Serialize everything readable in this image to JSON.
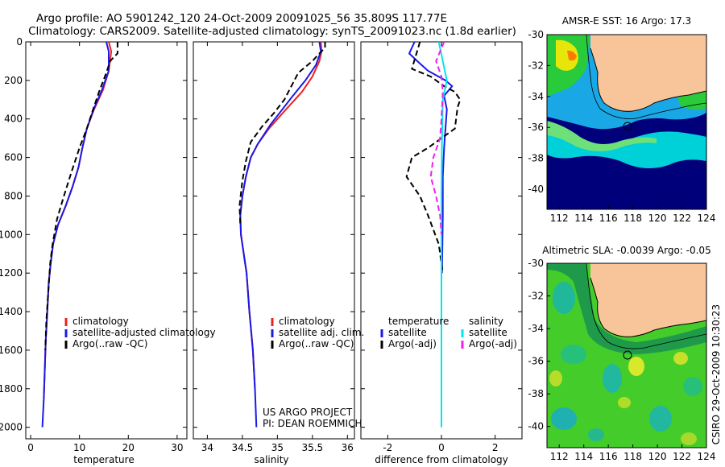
{
  "header": {
    "line1": "Argo profile: AO 5901242_120 24-Oct-2009 20091025_56 35.809S 117.77E",
    "line2": "Climatology: CARS2009. Satellite-adjusted climatology: synTS_20091023.nc (1.8d earlier)"
  },
  "depth_ticks": [
    0,
    200,
    400,
    600,
    800,
    1000,
    1200,
    1400,
    1600,
    1800,
    2000
  ],
  "colors": {
    "climatology": "#ee2020",
    "satellite": "#1a1ae6",
    "argo": "#000000",
    "cyan": "#00e5ee",
    "magenta": "#ee22ee",
    "land": "#f8c49a",
    "deep_blue": "#00007a"
  },
  "chart_data": [
    {
      "type": "line",
      "name": "temperature-panel",
      "xlabel": "temperature",
      "xlim": [
        -1,
        32
      ],
      "ylim": [
        0,
        2060
      ],
      "x_ticks": [
        0,
        10,
        20,
        30
      ],
      "series": [
        {
          "name": "climatology",
          "color": "#ee2020",
          "dashed": false,
          "points": [
            [
              16,
              0
            ],
            [
              16.5,
              50
            ],
            [
              16,
              150
            ],
            [
              14.8,
              250
            ],
            [
              13,
              350
            ],
            [
              11.5,
              450
            ],
            [
              10.6,
              550
            ],
            [
              9.8,
              650
            ],
            [
              8.6,
              750
            ],
            [
              7.2,
              850
            ],
            [
              5.6,
              950
            ],
            [
              4.6,
              1050
            ],
            [
              4.1,
              1150
            ],
            [
              3.7,
              1250
            ],
            [
              3.4,
              1400
            ],
            [
              3.1,
              1550
            ],
            [
              2.9,
              1700
            ],
            [
              2.7,
              1850
            ]
          ]
        },
        {
          "name": "satellite-adjusted climatology",
          "color": "#1a1ae6",
          "dashed": false,
          "points": [
            [
              15.5,
              0
            ],
            [
              16,
              50
            ],
            [
              16,
              150
            ],
            [
              14.6,
              250
            ],
            [
              12.9,
              350
            ],
            [
              11.5,
              450
            ],
            [
              10.6,
              550
            ],
            [
              9.8,
              650
            ],
            [
              8.6,
              750
            ],
            [
              7.2,
              850
            ],
            [
              5.6,
              950
            ],
            [
              4.6,
              1050
            ],
            [
              4.1,
              1150
            ],
            [
              3.7,
              1250
            ],
            [
              3.4,
              1400
            ],
            [
              3.1,
              1550
            ],
            [
              2.9,
              1700
            ],
            [
              2.7,
              1850
            ],
            [
              2.4,
              2000
            ]
          ]
        },
        {
          "name": "Argo(..raw -QC)",
          "color": "#000000",
          "dashed": true,
          "points": [
            [
              17.8,
              0
            ],
            [
              17.8,
              60
            ],
            [
              17,
              80
            ],
            [
              16.3,
              100
            ],
            [
              15.5,
              160
            ],
            [
              14,
              260
            ],
            [
              12.8,
              350
            ],
            [
              11.5,
              450
            ],
            [
              10,
              550
            ],
            [
              8.3,
              680
            ],
            [
              6.8,
              800
            ],
            [
              5.4,
              920
            ],
            [
              4.5,
              1050
            ],
            [
              4,
              1150
            ],
            [
              3.6,
              1300
            ],
            [
              3.2,
              1450
            ],
            [
              3,
              1600
            ]
          ]
        }
      ],
      "legend": [
        "climatology",
        "satellite-adjusted climatology",
        "Argo(..raw -QC)"
      ]
    },
    {
      "type": "line",
      "name": "salinity-panel",
      "xlabel": "salinity",
      "xlim": [
        33.8,
        36.1
      ],
      "ylim": [
        0,
        2060
      ],
      "x_ticks": [
        34,
        34.5,
        35,
        35.5,
        36
      ],
      "series": [
        {
          "name": "climatology",
          "color": "#ee2020",
          "dashed": false,
          "points": [
            [
              35.62,
              0
            ],
            [
              35.63,
              50
            ],
            [
              35.6,
              100
            ],
            [
              35.5,
              180
            ],
            [
              35.35,
              260
            ],
            [
              35.2,
              320
            ],
            [
              35.05,
              380
            ],
            [
              34.88,
              450
            ],
            [
              34.72,
              530
            ],
            [
              34.62,
              600
            ],
            [
              34.55,
              700
            ],
            [
              34.5,
              800
            ],
            [
              34.47,
              900
            ],
            [
              34.48,
              1000
            ],
            [
              34.52,
              1100
            ],
            [
              34.56,
              1200
            ],
            [
              34.6,
              1400
            ],
            [
              34.65,
              1600
            ],
            [
              34.68,
              1800
            ]
          ]
        },
        {
          "name": "satellite adj. clim.",
          "color": "#1a1ae6",
          "dashed": false,
          "points": [
            [
              35.6,
              0
            ],
            [
              35.62,
              50
            ],
            [
              35.55,
              120
            ],
            [
              35.4,
              200
            ],
            [
              35.2,
              290
            ],
            [
              35.05,
              360
            ],
            [
              34.9,
              430
            ],
            [
              34.72,
              530
            ],
            [
              34.62,
              600
            ],
            [
              34.55,
              700
            ],
            [
              34.5,
              800
            ],
            [
              34.47,
              900
            ],
            [
              34.48,
              1000
            ],
            [
              34.52,
              1100
            ],
            [
              34.56,
              1200
            ],
            [
              34.6,
              1400
            ],
            [
              34.65,
              1600
            ],
            [
              34.68,
              1800
            ],
            [
              34.7,
              2000
            ]
          ]
        },
        {
          "name": "Argo(..raw -QC)",
          "color": "#000000",
          "dashed": true,
          "points": [
            [
              35.68,
              0
            ],
            [
              35.68,
              30
            ],
            [
              35.6,
              60
            ],
            [
              35.5,
              100
            ],
            [
              35.3,
              160
            ],
            [
              35.2,
              230
            ],
            [
              35.1,
              300
            ],
            [
              34.95,
              370
            ],
            [
              34.78,
              440
            ],
            [
              34.62,
              520
            ],
            [
              34.55,
              620
            ],
            [
              34.5,
              720
            ],
            [
              34.46,
              850
            ],
            [
              34.47,
              950
            ]
          ]
        }
      ],
      "legend": [
        "climatology",
        "satellite adj. clim.",
        "Argo(..raw -QC)"
      ],
      "annotation": [
        "US ARGO PROJECT",
        "PI: DEAN ROEMMICH"
      ]
    },
    {
      "type": "line",
      "name": "difference-panel",
      "xlabel": "difference from climatology",
      "xlim": [
        -3,
        3
      ],
      "ylim": [
        0,
        2060
      ],
      "x_ticks": [
        -2,
        0,
        2
      ],
      "series": [
        {
          "name": "temperature satellite",
          "color": "#1a1ae6",
          "dashed": false,
          "points": [
            [
              -1,
              0
            ],
            [
              -1.2,
              60
            ],
            [
              -0.9,
              100
            ],
            [
              -0.5,
              150
            ],
            [
              0.15,
              200
            ],
            [
              0.4,
              230
            ],
            [
              0.1,
              280
            ],
            [
              0.2,
              350
            ],
            [
              0.15,
              450
            ],
            [
              0.1,
              550
            ],
            [
              0.05,
              700
            ],
            [
              0.05,
              900
            ],
            [
              0.02,
              1200
            ]
          ]
        },
        {
          "name": "temperature Argo(-adj)",
          "color": "#000000",
          "dashed": true,
          "points": [
            [
              -0.8,
              0
            ],
            [
              -1.1,
              140
            ],
            [
              -0.4,
              180
            ],
            [
              0.1,
              230
            ],
            [
              0.5,
              260
            ],
            [
              0.7,
              300
            ],
            [
              0.6,
              340
            ],
            [
              0.5,
              450
            ],
            [
              -0.5,
              550
            ],
            [
              -1.1,
              600
            ],
            [
              -1.3,
              700
            ],
            [
              -0.8,
              800
            ],
            [
              -0.5,
              900
            ],
            [
              -0.1,
              1050
            ],
            [
              0.05,
              1200
            ]
          ]
        },
        {
          "name": "salinity satellite",
          "color": "#00e5ee",
          "dashed": false,
          "points": [
            [
              -0.1,
              0
            ],
            [
              0.05,
              100
            ],
            [
              0.2,
              200
            ],
            [
              0.05,
              300
            ],
            [
              0.02,
              500
            ],
            [
              0,
              800
            ],
            [
              0,
              1100
            ],
            [
              0,
              1500
            ],
            [
              0,
              2000
            ]
          ]
        },
        {
          "name": "salinity Argo(-adj)",
          "color": "#ee22ee",
          "dashed": true,
          "points": [
            [
              0.1,
              0
            ],
            [
              -0.2,
              100
            ],
            [
              0,
              180
            ],
            [
              0.05,
              260
            ],
            [
              0,
              400
            ],
            [
              -0.05,
              500
            ],
            [
              -0.3,
              600
            ],
            [
              -0.4,
              700
            ],
            [
              -0.2,
              800
            ],
            [
              -0.05,
              900
            ],
            [
              0,
              1000
            ]
          ]
        }
      ],
      "legend_headers": [
        "temperature",
        "salinity"
      ],
      "legend_temperature": [
        "satellite",
        "Argo(-adj)"
      ],
      "legend_salinity": [
        "satellite",
        "Argo(-adj)"
      ]
    },
    {
      "type": "heatmap",
      "name": "sst-map",
      "title": "AMSR-E SST: 16 Argo: 17.3",
      "xlim": [
        111,
        124
      ],
      "ylim": [
        -41.3,
        -30
      ],
      "x_ticks": [
        112,
        114,
        116,
        118,
        120,
        122,
        124
      ],
      "y_ticks": [
        -30,
        -32,
        -34,
        -36,
        -38,
        -40
      ],
      "float_position": [
        117.77,
        -35.809
      ]
    },
    {
      "type": "heatmap",
      "name": "sla-map",
      "title": "Altimetric SLA: -0.0039 Argo: -0.05",
      "xlim": [
        111,
        124
      ],
      "ylim": [
        -41.3,
        -30
      ],
      "x_ticks": [
        112,
        114,
        116,
        118,
        120,
        122,
        124
      ],
      "y_ticks": [
        -30,
        -32,
        -34,
        -36,
        -38,
        -40
      ],
      "float_position": [
        117.77,
        -35.809
      ]
    }
  ],
  "credit": "CSIRO 29-Oct-2009 10:30:23"
}
